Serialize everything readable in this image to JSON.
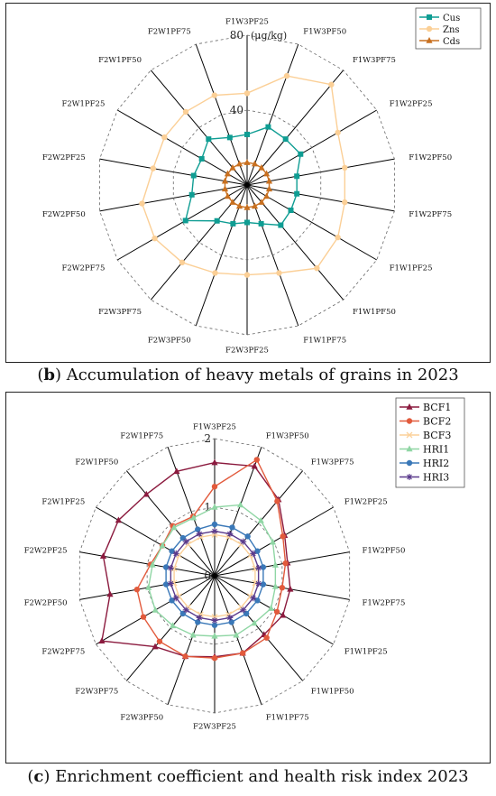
{
  "categories": [
    "F1W3PF25",
    "F1W3PF50",
    "F1W3PF75",
    "F1W2PF25",
    "F1W2PF50",
    "F1W2PF75",
    "F1W1PF25",
    "F1W1PF50",
    "F1W1PF75",
    "F2W3PF25",
    "F2W3PF50",
    "F2W3PF75",
    "F2W2PF75",
    "F2W2PF50",
    "F2W2PF25",
    "F2W1PF25",
    "F2W1PF50",
    "F2W1PF75"
  ],
  "panel_b": {
    "caption_letter": "b",
    "caption_text": " Accumulation of heavy metals of grains in 2023",
    "axis_unit": "(μg/kg)",
    "chart_data": {
      "type": "radar",
      "r_max": 80,
      "ticks": [
        0,
        40,
        80
      ],
      "tick_labels": [
        "",
        "40",
        "80"
      ],
      "legend_position": "top-right",
      "grid": true,
      "series": [
        {
          "name": "Cus",
          "color": "#0f9d93",
          "marker": "square",
          "values": [
            27,
            33,
            32,
            33,
            27,
            27,
            27,
            28,
            22,
            20,
            22,
            25,
            38,
            30,
            29,
            28,
            32,
            27
          ]
        },
        {
          "name": "Zns",
          "color": "#fbcf96",
          "marker": "circle",
          "values": [
            49,
            62,
            70,
            56,
            53,
            53,
            56,
            58,
            50,
            48,
            50,
            54,
            57,
            57,
            51,
            51,
            51,
            51
          ]
        },
        {
          "name": "Cds",
          "color": "#c87020",
          "marker": "triangle",
          "values": [
            12,
            12,
            12,
            12,
            12,
            12,
            12,
            12,
            12,
            12,
            12,
            12,
            12,
            12,
            12,
            12,
            12,
            12
          ]
        }
      ]
    }
  },
  "panel_c": {
    "caption_letter": "c",
    "caption_text": " Enrichment coefficient and health risk index 2023",
    "chart_data": {
      "type": "radar",
      "r_max": 2,
      "ticks": [
        0,
        1,
        2
      ],
      "tick_labels": [
        "0",
        "1",
        "2"
      ],
      "legend_position": "top-right",
      "grid": true,
      "series": [
        {
          "name": "BCF1",
          "color": "#8b1a3e",
          "marker": "triangle",
          "values": [
            1.65,
            1.7,
            1.45,
            1.18,
            1.08,
            1.12,
            1.15,
            1.12,
            1.2,
            1.18,
            1.25,
            1.35,
            1.9,
            1.55,
            1.65,
            1.62,
            1.55,
            1.62
          ]
        },
        {
          "name": "BCF2",
          "color": "#e25a3c",
          "marker": "circle",
          "values": [
            1.3,
            1.8,
            1.42,
            1.15,
            1.05,
            1.0,
            1.05,
            1.18,
            1.2,
            1.2,
            1.25,
            1.25,
            1.2,
            1.15,
            0.95,
            0.88,
            0.95,
            0.92
          ]
        },
        {
          "name": "BCF3",
          "color": "#fbd19a",
          "marker": "x",
          "values": [
            0.6,
            0.6,
            0.6,
            0.6,
            0.6,
            0.6,
            0.6,
            0.6,
            0.6,
            0.6,
            0.6,
            0.6,
            0.6,
            0.6,
            0.6,
            0.6,
            0.6,
            0.6
          ]
        },
        {
          "name": "HRI1",
          "color": "#8fd6a4",
          "marker": "triangle",
          "values": [
            1.0,
            1.1,
            1.05,
            0.98,
            0.9,
            0.9,
            0.95,
            0.9,
            0.92,
            0.88,
            0.92,
            0.95,
            1.0,
            0.98,
            0.92,
            0.88,
            0.92,
            0.9
          ]
        },
        {
          "name": "HRI2",
          "color": "#3a78b8",
          "marker": "circle",
          "values": [
            0.75,
            0.75,
            0.75,
            0.72,
            0.72,
            0.72,
            0.72,
            0.72,
            0.72,
            0.72,
            0.72,
            0.72,
            0.72,
            0.72,
            0.72,
            0.72,
            0.72,
            0.72
          ]
        },
        {
          "name": "HRI3",
          "color": "#5a3a8c",
          "marker": "star",
          "values": [
            0.65,
            0.65,
            0.65,
            0.65,
            0.65,
            0.65,
            0.65,
            0.65,
            0.65,
            0.65,
            0.65,
            0.65,
            0.65,
            0.65,
            0.65,
            0.65,
            0.65,
            0.65
          ]
        }
      ]
    }
  }
}
